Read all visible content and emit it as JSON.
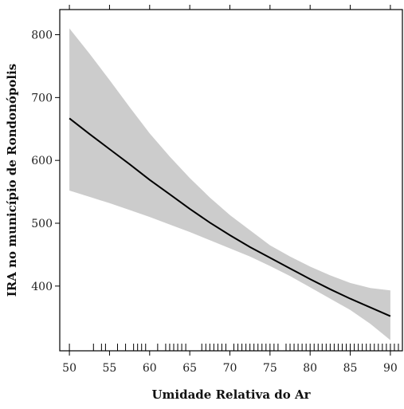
{
  "chart_data": {
    "type": "line",
    "xlabel": "Umidade Relativa do Ar",
    "ylabel": "IRA no município de Rondonópolis",
    "xlim": [
      48.8,
      91.5
    ],
    "ylim": [
      297,
      840
    ],
    "x_ticks": [
      50,
      55,
      60,
      65,
      70,
      75,
      80,
      85,
      90
    ],
    "y_ticks": [
      400,
      500,
      600,
      700,
      800
    ],
    "grid": false,
    "series": [
      {
        "x": [
          50,
          52.5,
          55,
          57.5,
          60,
          62.5,
          65,
          67.5,
          70,
          72.5,
          75,
          77.5,
          80,
          82.5,
          85,
          87.5,
          90
        ],
        "y": [
          667,
          642,
          618,
          594,
          569,
          546,
          523,
          501,
          481,
          462,
          445,
          428,
          411,
          395,
          380,
          366,
          352
        ],
        "lower": [
          552,
          542,
          532,
          521,
          510,
          498,
          486,
          473,
          460,
          447,
          432,
          416,
          398,
          380,
          362,
          340,
          314
        ],
        "upper": [
          810,
          770,
          728,
          685,
          643,
          606,
          572,
          541,
          513,
          489,
          465,
          447,
          431,
          417,
          405,
          397,
          393
        ]
      }
    ],
    "rug": [
      50,
      53,
      54,
      54.5,
      56,
      57,
      58,
      58.5,
      59,
      59.5,
      61,
      62,
      62.5,
      63,
      63.5,
      64,
      64.5,
      66.5,
      67,
      67.5,
      68,
      68.5,
      69,
      69.5,
      70.5,
      71,
      71.5,
      72,
      72.5,
      73,
      73.5,
      74,
      74.5,
      75,
      75.5,
      76,
      77,
      77.5,
      78,
      78.5,
      79,
      79.5,
      80,
      80.5,
      81,
      81.5,
      82,
      82.5,
      83,
      83.5,
      84,
      84.5,
      85,
      85.5,
      86,
      86.5,
      87,
      87.5,
      88,
      88.5,
      89,
      89.5,
      90,
      90.5,
      91
    ]
  }
}
